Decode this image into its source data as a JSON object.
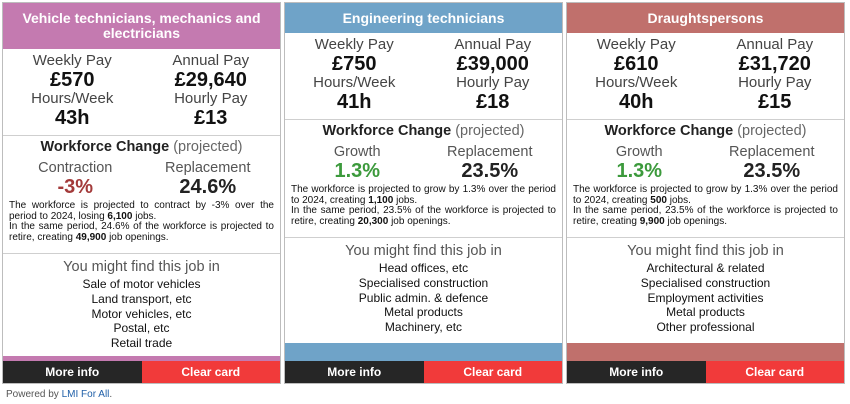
{
  "cards": [
    {
      "title": "Vehicle technicians, mechanics and electricians",
      "color": "#c47ab0",
      "weekly_pay_label": "Weekly Pay",
      "weekly_pay": "£570",
      "annual_pay_label": "Annual Pay",
      "annual_pay": "£29,640",
      "hours_label": "Hours/Week",
      "hours": "43h",
      "hourly_label": "Hourly Pay",
      "hourly": "£13",
      "workforce_title": "Workforce Change",
      "workforce_projected": "(projected)",
      "change_label": "Contraction",
      "change_value": "-3%",
      "replacement_label": "Replacement",
      "replacement_value": "24.6%",
      "desc_p1": "The workforce is projected to contract by -3% over the period to 2024, losing ",
      "desc_jobs": "6,100",
      "desc_p2": " jobs.",
      "desc_p3": "In the same period, 24.6% of the workforce is projected to retire, creating ",
      "desc_openings": "49,900",
      "desc_p4": " job openings.",
      "find_title": "You might find this job in",
      "find_items": [
        "Sale of motor vehicles",
        "Land transport, etc",
        "Motor vehicles, etc",
        "Postal, etc",
        "Retail trade"
      ],
      "more_label": "More info",
      "clear_label": "Clear card"
    },
    {
      "title": "Engineering technicians",
      "color": "#6fa3c8",
      "weekly_pay_label": "Weekly Pay",
      "weekly_pay": "£750",
      "annual_pay_label": "Annual Pay",
      "annual_pay": "£39,000",
      "hours_label": "Hours/Week",
      "hours": "41h",
      "hourly_label": "Hourly Pay",
      "hourly": "£18",
      "workforce_title": "Workforce Change",
      "workforce_projected": "(projected)",
      "change_label": "Growth",
      "change_value": "1.3%",
      "replacement_label": "Replacement",
      "replacement_value": "23.5%",
      "desc_p1": "The workforce is projected to grow by 1.3% over the period to 2024, creating ",
      "desc_jobs": "1,100",
      "desc_p2": " jobs.",
      "desc_p3": "In the same period, 23.5% of the workforce is projected to retire, creating ",
      "desc_openings": "20,300",
      "desc_p4": " job openings.",
      "find_title": "You might find this job in",
      "find_items": [
        "Head offices, etc",
        "Specialised construction",
        "Public admin. & defence",
        "Metal products",
        "Machinery, etc"
      ],
      "more_label": "More info",
      "clear_label": "Clear card"
    },
    {
      "title": "Draughtspersons",
      "color": "#c0706c",
      "weekly_pay_label": "Weekly Pay",
      "weekly_pay": "£610",
      "annual_pay_label": "Annual Pay",
      "annual_pay": "£31,720",
      "hours_label": "Hours/Week",
      "hours": "40h",
      "hourly_label": "Hourly Pay",
      "hourly": "£15",
      "workforce_title": "Workforce Change",
      "workforce_projected": "(projected)",
      "change_label": "Growth",
      "change_value": "1.3%",
      "replacement_label": "Replacement",
      "replacement_value": "23.5%",
      "desc_p1": "The workforce is projected to grow by 1.3% over the period to 2024, creating ",
      "desc_jobs": "500",
      "desc_p2": " jobs.",
      "desc_p3": "In the same period, 23.5% of the workforce is projected to retire, creating ",
      "desc_openings": "9,900",
      "desc_p4": " job openings.",
      "find_title": "You might find this job in",
      "find_items": [
        "Architectural & related",
        "Specialised construction",
        "Employment activities",
        "Metal products",
        "Other professional"
      ],
      "more_label": "More info",
      "clear_label": "Clear card"
    }
  ],
  "footer": {
    "powered_prefix": "Powered by ",
    "powered_link": "LMI For All",
    "powered_suffix": "."
  }
}
